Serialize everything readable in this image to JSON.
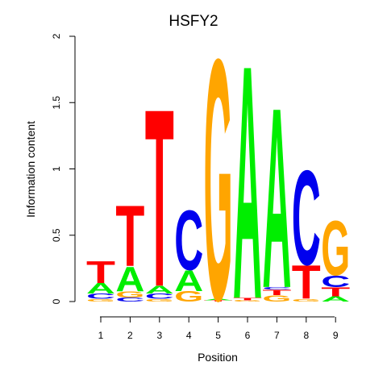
{
  "chart_data": {
    "type": "sequence-logo",
    "title": "HSFY2",
    "xlabel": "Position",
    "ylabel": "Information content",
    "ylim": [
      0,
      2
    ],
    "y_ticks": [
      "0",
      "0.5",
      "1",
      "1.5",
      "2"
    ],
    "positions": [
      "1",
      "2",
      "3",
      "4",
      "5",
      "6",
      "7",
      "8",
      "9"
    ],
    "colors": {
      "A": "#00ee00",
      "C": "#0000ee",
      "G": "#ffa500",
      "T": "#ff0000"
    },
    "stacks": [
      [
        {
          "base": "G",
          "bits": 0.02
        },
        {
          "base": "C",
          "bits": 0.04
        },
        {
          "base": "A",
          "bits": 0.08
        },
        {
          "base": "T",
          "bits": 0.17
        }
      ],
      [
        {
          "base": "C",
          "bits": 0.03
        },
        {
          "base": "G",
          "bits": 0.05
        },
        {
          "base": "A",
          "bits": 0.19
        },
        {
          "base": "T",
          "bits": 0.47
        }
      ],
      [
        {
          "base": "G",
          "bits": 0.02
        },
        {
          "base": "C",
          "bits": 0.04
        },
        {
          "base": "A",
          "bits": 0.06
        },
        {
          "base": "T",
          "bits": 1.37
        }
      ],
      [
        {
          "base": "G",
          "bits": 0.08
        },
        {
          "base": "A",
          "bits": 0.16
        },
        {
          "base": "C",
          "bits": 0.46
        }
      ],
      [
        {
          "base": "T",
          "bits": 0.01
        },
        {
          "base": "A",
          "bits": 0.01
        },
        {
          "base": "G",
          "bits": 1.86
        }
      ],
      [
        {
          "base": "G",
          "bits": 0.01
        },
        {
          "base": "T",
          "bits": 0.02
        },
        {
          "base": "A",
          "bits": 1.8
        }
      ],
      [
        {
          "base": "G",
          "bits": 0.05
        },
        {
          "base": "T",
          "bits": 0.04
        },
        {
          "base": "C",
          "bits": 0.02
        },
        {
          "base": "A",
          "bits": 1.39
        }
      ],
      [
        {
          "base": "G",
          "bits": 0.02
        },
        {
          "base": "T",
          "bits": 0.26
        },
        {
          "base": "C",
          "bits": 0.73
        }
      ],
      [
        {
          "base": "A",
          "bits": 0.04
        },
        {
          "base": "T",
          "bits": 0.07
        },
        {
          "base": "C",
          "bits": 0.09
        },
        {
          "base": "G",
          "bits": 0.42
        }
      ]
    ]
  }
}
